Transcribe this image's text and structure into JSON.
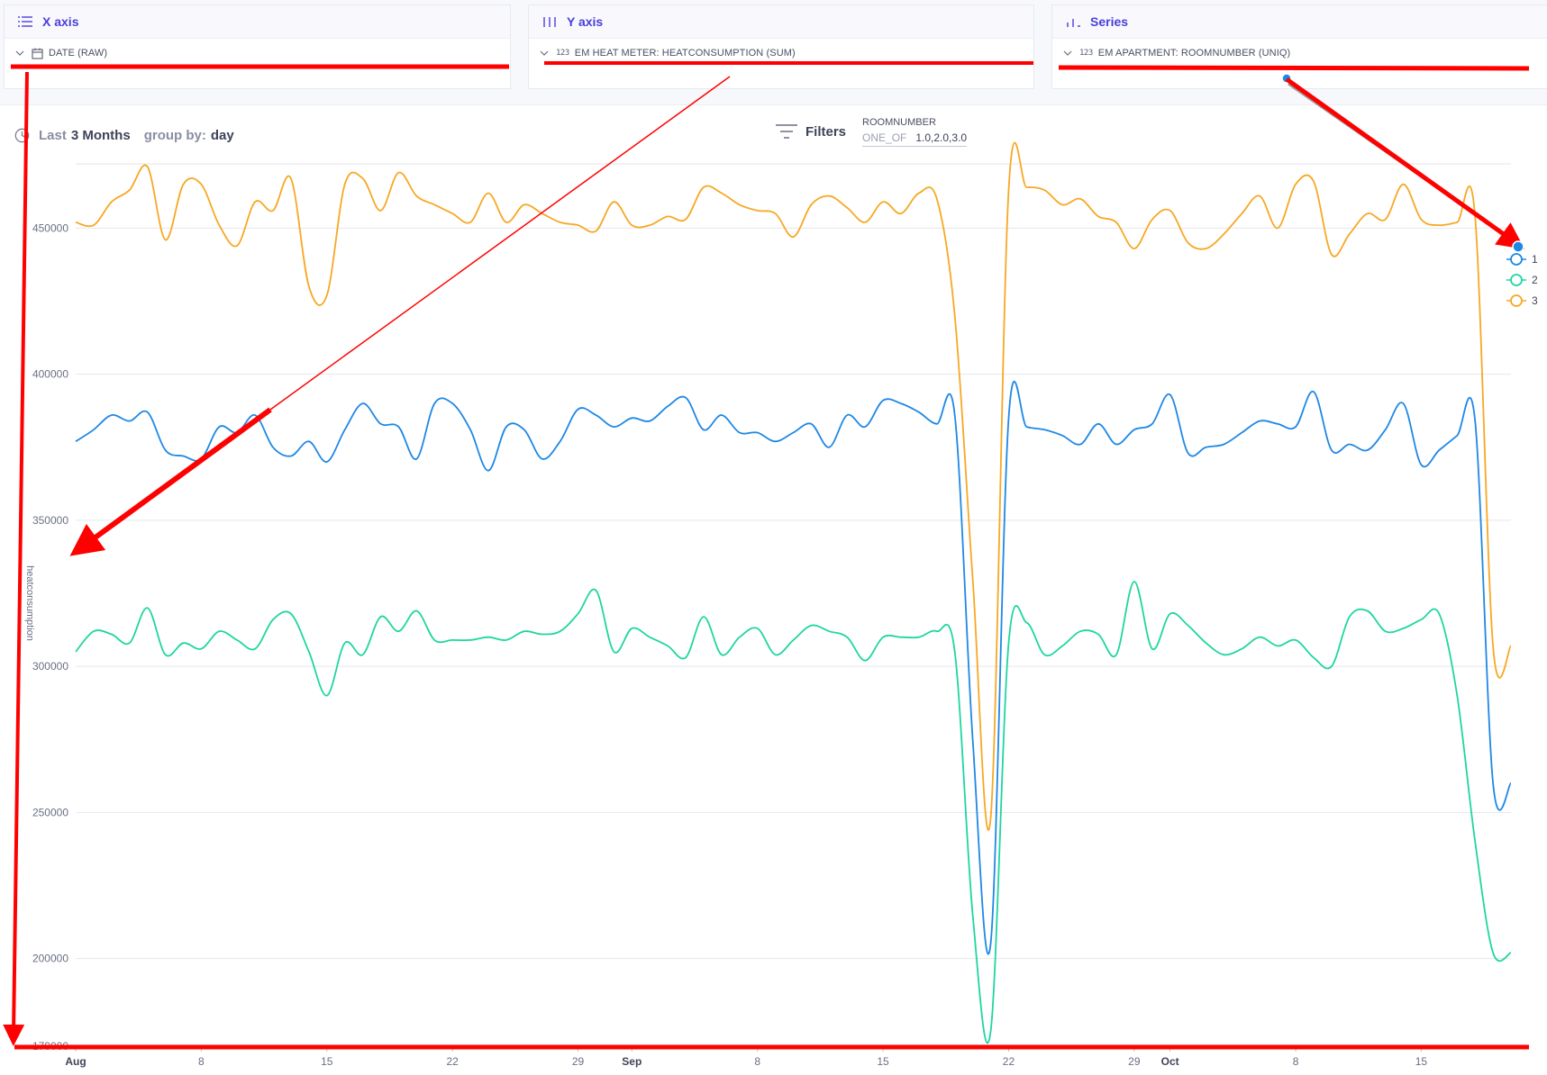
{
  "panels": {
    "x_axis": {
      "title": "X axis",
      "icon": "list-icon",
      "field": "DATE (RAW)",
      "field_icon": "calendar-icon"
    },
    "y_axis": {
      "title": "Y axis",
      "icon": "bars-icon",
      "field": "EM HEAT METER: HEATCONSUMPTION (SUM)",
      "field_icon": "123-icon",
      "type_badge": "123"
    },
    "series": {
      "title": "Series",
      "icon": "bar-chart-icon",
      "field": "EM APARTMENT: ROOMNUMBER (UNIQ)",
      "field_icon": "123-icon",
      "type_badge": "123"
    }
  },
  "time_range": {
    "prefix": "Last",
    "amount": "3 Months",
    "group_by_label": "group by:",
    "group_by_value": "day"
  },
  "filters": {
    "label": "Filters",
    "items": [
      {
        "name": "ROOMNUMBER",
        "operator": "ONE_OF",
        "value": "1.0,2.0,3.0"
      }
    ]
  },
  "colors": {
    "accent": "#4b3fd9",
    "annotation": "#ff0000",
    "series1": "#1e88e5",
    "series2": "#1ed6a0",
    "series3": "#f7a823"
  },
  "chart_data": {
    "type": "line",
    "x_start": "2023-08-01",
    "x_end": "2023-10-20",
    "x": [
      "2023-08-01",
      "2023-08-02",
      "2023-08-03",
      "2023-08-04",
      "2023-08-05",
      "2023-08-06",
      "2023-08-07",
      "2023-08-08",
      "2023-08-09",
      "2023-08-10",
      "2023-08-11",
      "2023-08-12",
      "2023-08-13",
      "2023-08-14",
      "2023-08-15",
      "2023-08-16",
      "2023-08-17",
      "2023-08-18",
      "2023-08-19",
      "2023-08-20",
      "2023-08-21",
      "2023-08-22",
      "2023-08-23",
      "2023-08-24",
      "2023-08-25",
      "2023-08-26",
      "2023-08-27",
      "2023-08-28",
      "2023-08-29",
      "2023-08-30",
      "2023-08-31",
      "2023-09-01",
      "2023-09-02",
      "2023-09-03",
      "2023-09-04",
      "2023-09-05",
      "2023-09-06",
      "2023-09-07",
      "2023-09-08",
      "2023-09-09",
      "2023-09-10",
      "2023-09-11",
      "2023-09-12",
      "2023-09-13",
      "2023-09-14",
      "2023-09-15",
      "2023-09-16",
      "2023-09-17",
      "2023-09-18",
      "2023-09-19",
      "2023-09-20",
      "2023-09-21",
      "2023-09-22",
      "2023-09-23",
      "2023-09-24",
      "2023-09-25",
      "2023-09-26",
      "2023-09-27",
      "2023-09-28",
      "2023-09-29",
      "2023-09-30",
      "2023-10-01",
      "2023-10-02",
      "2023-10-03",
      "2023-10-04",
      "2023-10-05",
      "2023-10-06",
      "2023-10-07",
      "2023-10-08",
      "2023-10-09",
      "2023-10-10",
      "2023-10-11",
      "2023-10-12",
      "2023-10-13",
      "2023-10-14",
      "2023-10-15",
      "2023-10-16",
      "2023-10-17",
      "2023-10-18",
      "2023-10-19",
      "2023-10-20"
    ],
    "series": [
      {
        "name": "1",
        "color": "#1e88e5",
        "values": [
          377000,
          381000,
          386000,
          384000,
          387000,
          374000,
          372000,
          371000,
          382000,
          380000,
          386000,
          375000,
          372000,
          377000,
          370000,
          381000,
          390000,
          383000,
          382000,
          371000,
          390000,
          390000,
          381000,
          367000,
          382000,
          381000,
          371000,
          377000,
          388000,
          386000,
          382000,
          385000,
          384000,
          389000,
          392000,
          381000,
          386000,
          380000,
          380000,
          377000,
          380000,
          383000,
          375000,
          386000,
          382000,
          391000,
          390000,
          387000,
          383000,
          386000,
          275000,
          205000,
          385000,
          382000,
          381000,
          379000,
          376000,
          383000,
          376000,
          381000,
          383000,
          393000,
          373000,
          375000,
          376000,
          380000,
          384000,
          383000,
          382000,
          394000,
          374000,
          376000,
          374000,
          381000,
          390000,
          369000,
          374000,
          379000,
          384000,
          260000,
          260000
        ]
      },
      {
        "name": "2",
        "color": "#1ed6a0",
        "values": [
          305000,
          312000,
          311000,
          308000,
          320000,
          304000,
          308000,
          306000,
          312000,
          309000,
          306000,
          316000,
          318000,
          305000,
          290000,
          308000,
          304000,
          317000,
          312000,
          319000,
          309000,
          309000,
          309000,
          310000,
          309000,
          312000,
          311000,
          312000,
          318000,
          326000,
          305000,
          313000,
          310000,
          307000,
          303000,
          317000,
          304000,
          310000,
          313000,
          304000,
          309000,
          314000,
          312000,
          310000,
          302000,
          310000,
          310000,
          310000,
          312000,
          305000,
          215000,
          175000,
          308000,
          315000,
          304000,
          307000,
          312000,
          311000,
          304000,
          329000,
          306000,
          318000,
          314000,
          308000,
          304000,
          306000,
          310000,
          307000,
          309000,
          303000,
          300000,
          317000,
          319000,
          312000,
          313000,
          316000,
          318000,
          290000,
          240000,
          202000,
          202000
        ]
      },
      {
        "name": "3",
        "color": "#f7a823",
        "values": [
          452000,
          451000,
          459000,
          463000,
          471000,
          446000,
          465000,
          465000,
          451000,
          444000,
          459000,
          456000,
          467000,
          430000,
          427000,
          465000,
          467000,
          456000,
          469000,
          461000,
          458000,
          455000,
          452000,
          462000,
          452000,
          458000,
          455000,
          452000,
          451000,
          449000,
          459000,
          451000,
          451000,
          454000,
          453000,
          464000,
          462000,
          458000,
          456000,
          455000,
          447000,
          458000,
          461000,
          457000,
          452000,
          459000,
          455000,
          462000,
          460000,
          420000,
          330000,
          248000,
          463000,
          464000,
          463000,
          458000,
          460000,
          454000,
          452000,
          443000,
          453000,
          456000,
          445000,
          443000,
          448000,
          455000,
          461000,
          450000,
          465000,
          466000,
          441000,
          448000,
          455000,
          453000,
          465000,
          453000,
          451000,
          452000,
          454000,
          307000,
          307000
        ]
      }
    ],
    "y_ticks": [
      "450000",
      "400000",
      "350000",
      "300000",
      "250000",
      "200000",
      "170000"
    ],
    "x_tick_labels": [
      "Aug",
      "8",
      "15",
      "22",
      "29",
      "Sep",
      "8",
      "15",
      "22",
      "29",
      "Oct",
      "8",
      "15"
    ],
    "ylabel": "heatconsumption",
    "ylim": [
      170000,
      472000
    ],
    "legend": {
      "position": "right",
      "entries": [
        "1",
        "2",
        "3"
      ]
    },
    "grid": true
  }
}
